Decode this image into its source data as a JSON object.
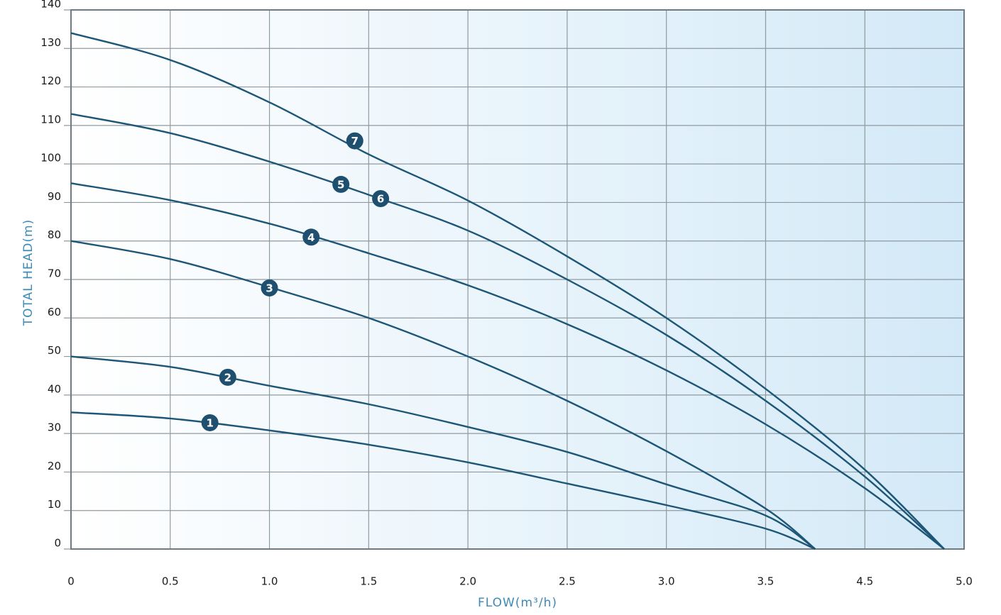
{
  "chart_data": {
    "type": "line",
    "x_label": "FLOW(m³/h)",
    "y_label": "TOTAL HEAD(m)",
    "xlim": [
      0,
      5
    ],
    "xticks": [
      0,
      0.5,
      {
        "value": 1,
        "label": "1.0"
      },
      1.5,
      {
        "value": 2,
        "label": "2.0"
      },
      2.5,
      {
        "value": 3,
        "label": "3.0"
      },
      3.5,
      4.5,
      {
        "value": 5,
        "label": "5.0"
      }
    ],
    "ylim": [
      0,
      140
    ],
    "yticks": [
      0,
      10,
      20,
      30,
      40,
      50,
      60,
      70,
      80,
      90,
      100,
      110,
      120,
      130,
      140
    ],
    "grid": true,
    "color": "#1e5677",
    "series": [
      {
        "x": [
          0,
          0.5,
          1,
          1.5,
          2,
          2.5,
          3,
          3.5,
          4.0
        ],
        "values": [
          35.5,
          33.9,
          30.8,
          27.1,
          22.5,
          17,
          11.4,
          5.3,
          0
        ]
      },
      {
        "x": [
          0,
          0.5,
          1,
          1.5,
          2,
          2.5,
          3,
          3.5,
          4.0
        ],
        "values": [
          50,
          47.3,
          42.4,
          37.6,
          31.7,
          25.2,
          16.8,
          8.7,
          0
        ]
      },
      {
        "x": [
          0,
          0.5,
          1,
          1.5,
          2,
          2.5,
          3,
          3.5,
          4.0
        ],
        "values": [
          80,
          75.3,
          68,
          60,
          50,
          38.5,
          25.4,
          10.5,
          0
        ]
      },
      {
        "x": [
          0,
          0.5,
          1,
          1.5,
          2,
          2.5,
          3,
          3.5,
          4.5,
          4.9
        ],
        "values": [
          95,
          90.6,
          84.5,
          76.8,
          68.5,
          58.4,
          46.4,
          32.4,
          15.8,
          0
        ]
      },
      {
        "x": [
          0,
          0.5,
          1,
          1.5,
          2,
          2.5,
          3,
          3.5,
          4.5,
          4.9
        ],
        "values": [
          113,
          108,
          100.6,
          92,
          82.7,
          70,
          55.6,
          38.5,
          18.8,
          0
        ]
      },
      {
        "x": [
          0,
          0.5,
          1,
          1.5,
          2,
          2.5,
          3,
          3.5,
          4.5,
          4.9
        ],
        "values": [
          134,
          127,
          116,
          102.5,
          90.5,
          76,
          60,
          41.6,
          20.6,
          0
        ]
      }
    ],
    "annotations": [
      {
        "text": "1",
        "x": 0.7,
        "y": 32.8
      },
      {
        "text": "2",
        "x": 0.79,
        "y": 44.6
      },
      {
        "text": "3",
        "x": 1.0,
        "y": 67.8
      },
      {
        "text": "4",
        "x": 1.21,
        "y": 81
      },
      {
        "text": "5",
        "x": 1.36,
        "y": 94.7
      },
      {
        "text": "6",
        "x": 1.56,
        "y": 91
      },
      {
        "text": "7",
        "x": 1.43,
        "y": 106
      }
    ]
  }
}
